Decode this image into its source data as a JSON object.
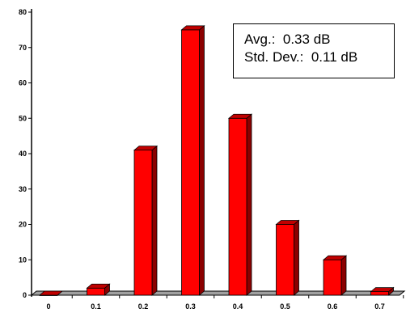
{
  "chart_data": {
    "type": "bar",
    "categories": [
      "0",
      "0.1",
      "0.2",
      "0.3",
      "0.4",
      "0.5",
      "0.6",
      "0.7"
    ],
    "values": [
      0,
      2,
      41,
      75,
      50,
      20,
      10,
      1
    ],
    "ylim": [
      0,
      80
    ],
    "yticks": [
      "0",
      "10",
      "20",
      "30",
      "40",
      "50",
      "60",
      "70",
      "80"
    ],
    "grid": false,
    "bar_color": "#ff0000",
    "bar_side_color": "#8b0000",
    "bar_top_color": "#c00000",
    "floor_color": "#a0a0a0",
    "annotation": {
      "avg_line": "Avg.:  0.33 dB",
      "std_line": "Std. Dev.:  0.11 dB"
    }
  }
}
